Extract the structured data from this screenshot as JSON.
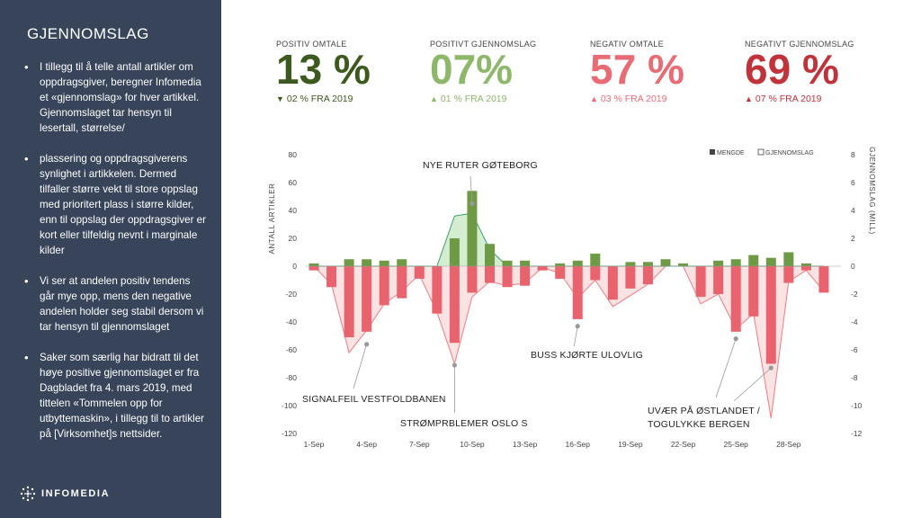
{
  "sidebar": {
    "title": "GJENNOMSLAG",
    "bullets": [
      "I tillegg til å telle antall artikler om oppdragsgiver, beregner Infomedia et «gjennomslag» for hver artikkel. Gjennomslaget tar hensyn til lesertall, størrelse/",
      "plassering og oppdragsgiverens synlighet i artikkelen. Dermed tilfaller større vekt til store oppslag med prioritert plass i større kilder, enn til oppslag der oppdragsgiver er kort eller tilfeldig nevnt i marginale kilder",
      "Vi ser at andelen positiv tendens går mye opp, mens den negative andelen holder seg stabil dersom vi tar hensyn til gjennomslaget",
      "Saker som særlig har bidratt til det høye positive gjennomslaget er fra Dagbladet fra 4. mars 2019, med tittelen «Tommelen opp for utbyttemaskin», i tillegg til to artikler på [Virksomhet]s nettsider."
    ],
    "logo": "INFOMEDIA"
  },
  "kpis": [
    {
      "label": "POSITIV OMTALE",
      "value": "13 %",
      "change": "02 % FRA 2019",
      "direction": "down",
      "color": "#3d5a1e"
    },
    {
      "label": "POSITIVT GJENNOMSLAG",
      "value": "07%",
      "change": "01 % FRA 2019",
      "direction": "up",
      "color": "#8db86a"
    },
    {
      "label": "NEGATIV  OMTALE",
      "value": "57 %",
      "change": "03 % FRA 2019",
      "direction": "up",
      "color": "#e96b74"
    },
    {
      "label": "NEGATIVT  GJENNOMSLAG",
      "value": "69 %",
      "change": "07 % FRA 2019",
      "direction": "up",
      "color": "#c0333b"
    }
  ],
  "chart_data": {
    "type": "bar",
    "categories": [
      "1-Sep",
      "2-Sep",
      "3-Sep",
      "4-Sep",
      "5-Sep",
      "6-Sep",
      "7-Sep",
      "8-Sep",
      "9-Sep",
      "10-Sep",
      "11-Sep",
      "12-Sep",
      "13-Sep",
      "14-Sep",
      "15-Sep",
      "16-Sep",
      "17-Sep",
      "18-Sep",
      "19-Sep",
      "20-Sep",
      "21-Sep",
      "22-Sep",
      "23-Sep",
      "24-Sep",
      "25-Sep",
      "26-Sep",
      "27-Sep",
      "28-Sep",
      "29-Sep",
      "30-Sep"
    ],
    "x_tick_labels": [
      "1-Sep",
      "4-Sep",
      "7-Sep",
      "10-Sep",
      "13-Sep",
      "16-Sep",
      "19-Sep",
      "22-Sep",
      "25-Sep",
      "28-Sep"
    ],
    "ylabel_left": "ANTALL  ARTIKLER",
    "ylabel_right": "GJENNOMSLAG  (MILL)",
    "ylim_left": [
      -120,
      80
    ],
    "ylim_right": [
      -12,
      8
    ],
    "yticks_left": [
      80,
      60,
      40,
      20,
      0,
      -20,
      -40,
      -60,
      -80,
      -100,
      -120
    ],
    "yticks_right": [
      8,
      6,
      4,
      2,
      0,
      -2,
      -4,
      -6,
      -8,
      -10,
      -12
    ],
    "legend": {
      "position": "top-right",
      "bar_label": "MENGDE",
      "area_label": "GJENNOMSLAG"
    },
    "colors": {
      "positive": "#6e9a45",
      "negative": "#e8636d",
      "pos_area": "#d4ecd0",
      "neg_area": "#fbe3e4",
      "pos_line": "#3aa36a",
      "neg_line": "#f07a82"
    },
    "positive_values": [
      2,
      0,
      5,
      5,
      4,
      5,
      0,
      0,
      20,
      54,
      16,
      4,
      4,
      0,
      2,
      4,
      9,
      0,
      3,
      3,
      5,
      2,
      0,
      4,
      5,
      8,
      6,
      10,
      2,
      0
    ],
    "negative_values": [
      -3,
      -15,
      -51,
      -47,
      -28,
      -23,
      -9,
      -34,
      -55,
      -19,
      -12,
      -15,
      -14,
      -3,
      -9,
      -38,
      -10,
      -24,
      -16,
      -13,
      0,
      0,
      -22,
      -20,
      -47,
      -36,
      -70,
      -12,
      -3,
      -19
    ],
    "positive_impact": [
      0,
      0,
      0,
      0,
      0,
      0,
      0,
      0,
      3.6,
      3.8,
      1.2,
      0,
      0,
      0,
      0,
      0,
      0,
      0,
      0,
      0,
      0,
      0,
      0,
      0,
      0,
      0,
      0,
      0,
      0,
      0
    ],
    "negative_impact": [
      0,
      -1.3,
      -6.2,
      -4.6,
      -2.7,
      -1.8,
      -0.6,
      -3.3,
      -7.0,
      -2.2,
      -1.1,
      -1.4,
      -1.2,
      -0.1,
      -0.5,
      -2.3,
      -1.0,
      -2.9,
      -2.1,
      -1.3,
      0,
      0,
      -2.7,
      -2.0,
      -4.5,
      -3.4,
      -10.9,
      -1.1,
      -0.3,
      -1.8
    ],
    "annotations": [
      {
        "text": "NYE RUTER GØTEBORG",
        "day": 9,
        "value": 45
      },
      {
        "text": "SIGNALFEIL VESTFOLDBANEN",
        "day": 3,
        "value": -56
      },
      {
        "text": "STRØMPRBLEMER OSLO S",
        "day": 8,
        "value": -71
      },
      {
        "text": "BUSS KJØRTE ULOVLIG",
        "day": 15,
        "value": -43
      },
      {
        "text": "UVÆR PÅ ØSTLANDET /",
        "day": 24,
        "value": -52
      },
      {
        "text": "TOGULYKKE BERGEN",
        "day": 26,
        "value": -73
      }
    ]
  }
}
